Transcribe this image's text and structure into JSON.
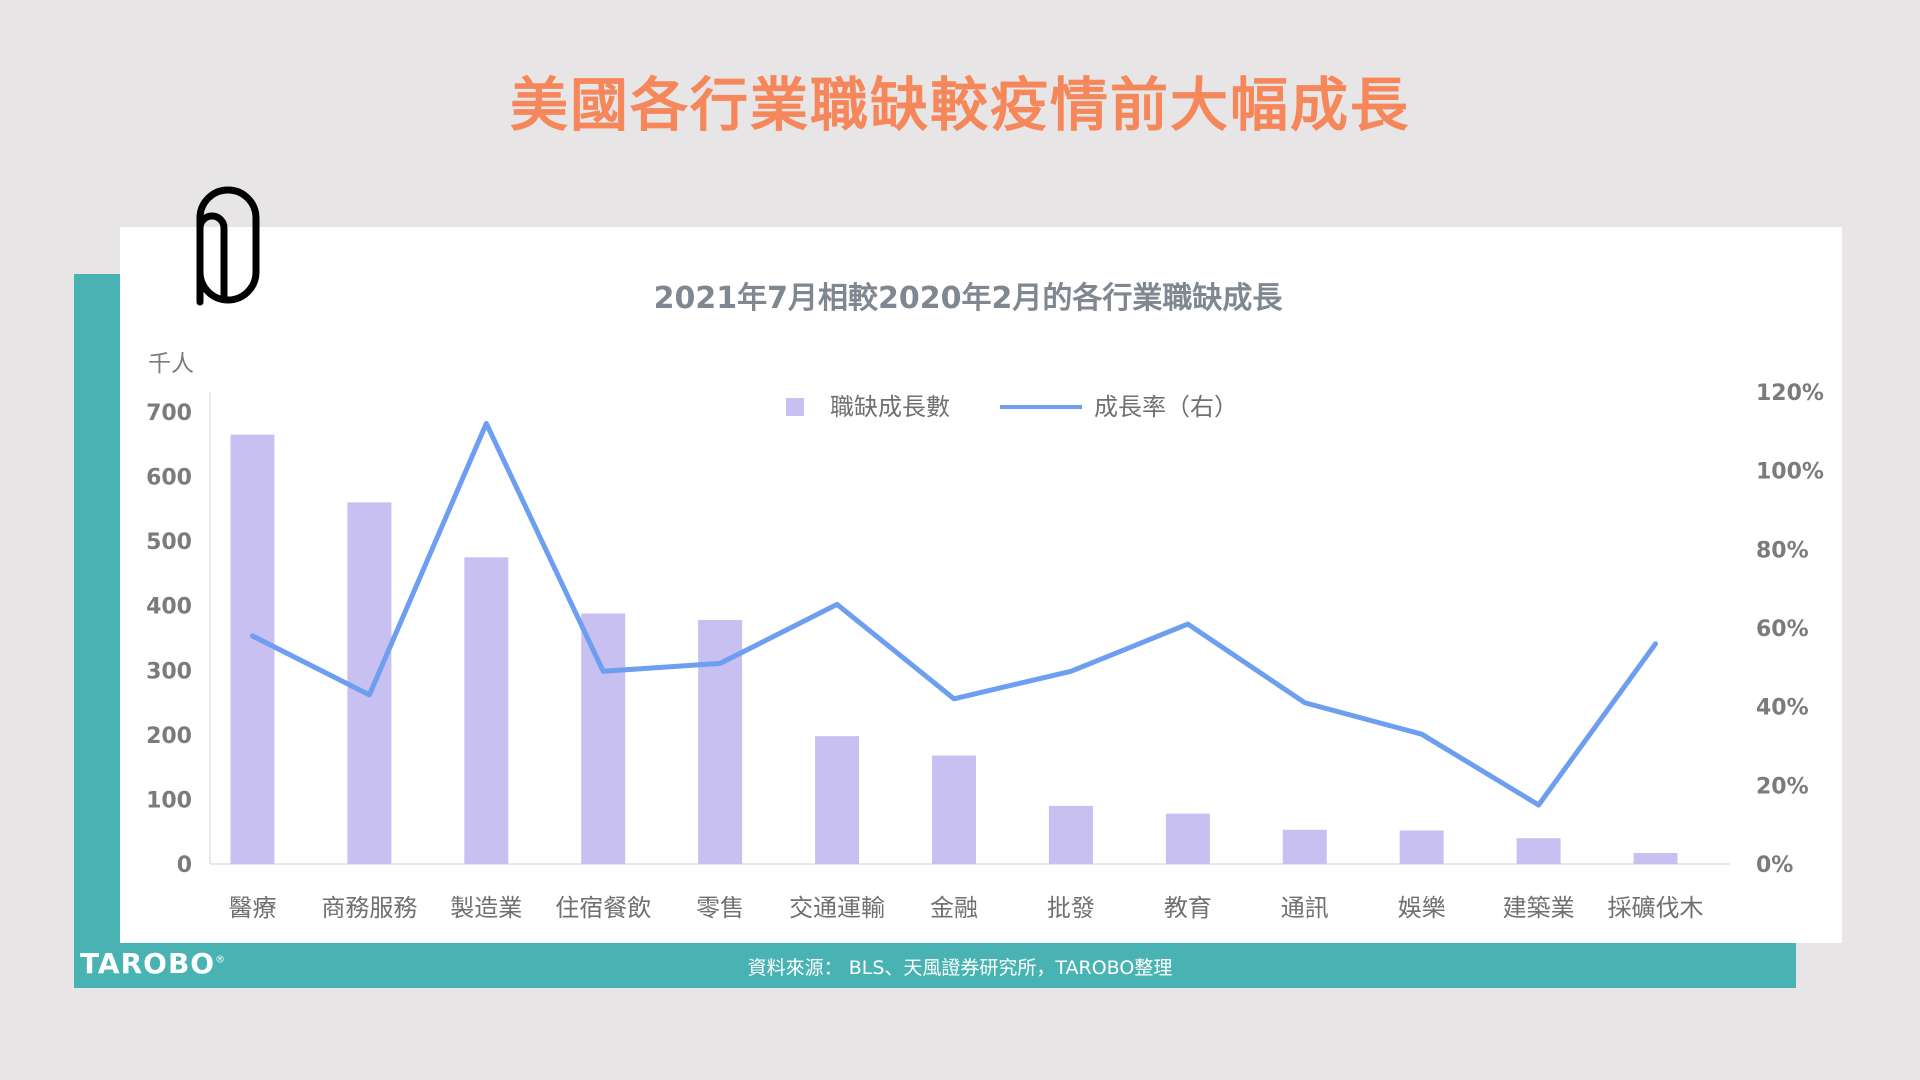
{
  "page": {
    "title": "美國各行業職缺較疫情前大幅成長",
    "source": "資料來源： BLS、天風證券研究所，TAROBO整理",
    "brand": "TAROBO",
    "brand_mark": "®"
  },
  "colors": {
    "title": "#f5875a",
    "teal": "#49b3b3",
    "bar": "#c8c0f0",
    "line": "#6e9ef0",
    "background": "#e7e5e6"
  },
  "icons": {
    "clip": "paperclip-icon"
  },
  "chart_data": {
    "type": "bar",
    "title": "2021年7月相較2020年2月的各行業職缺成長",
    "left_unit": "千人",
    "categories": [
      "醫療",
      "商務服務",
      "製造業",
      "住宿餐飲",
      "零售",
      "交通運輸",
      "金融",
      "批發",
      "教育",
      "通訊",
      "娛樂",
      "建築業",
      "採礦伐木"
    ],
    "series": [
      {
        "name": "職缺成長數",
        "type": "bar",
        "axis": "left",
        "values": [
          665,
          560,
          475,
          388,
          378,
          198,
          168,
          90,
          78,
          53,
          52,
          40,
          17
        ]
      },
      {
        "name": "成長率（右）",
        "type": "line",
        "axis": "right",
        "values": [
          58,
          43,
          112,
          49,
          51,
          66,
          42,
          49,
          61,
          41,
          33,
          15,
          56
        ]
      }
    ],
    "left_axis": {
      "min": 0,
      "max": 700,
      "ticks": [
        {
          "v": 0,
          "label": "0"
        },
        {
          "v": 100,
          "label": "100"
        },
        {
          "v": 200,
          "label": "200"
        },
        {
          "v": 300,
          "label": "300"
        },
        {
          "v": 400,
          "label": "400"
        },
        {
          "v": 500,
          "label": "500"
        },
        {
          "v": 600,
          "label": "600"
        },
        {
          "v": 700,
          "label": "700"
        }
      ]
    },
    "right_axis": {
      "min": 0,
      "max": 120,
      "ticks": [
        {
          "v": 0,
          "label": "0%"
        },
        {
          "v": 20,
          "label": "20%"
        },
        {
          "v": 40,
          "label": "40%"
        },
        {
          "v": 60,
          "label": "60%"
        },
        {
          "v": 80,
          "label": "80%"
        },
        {
          "v": 100,
          "label": "100%"
        },
        {
          "v": 120,
          "label": "120%"
        }
      ]
    },
    "legend_position": "top-center",
    "grid": false
  }
}
